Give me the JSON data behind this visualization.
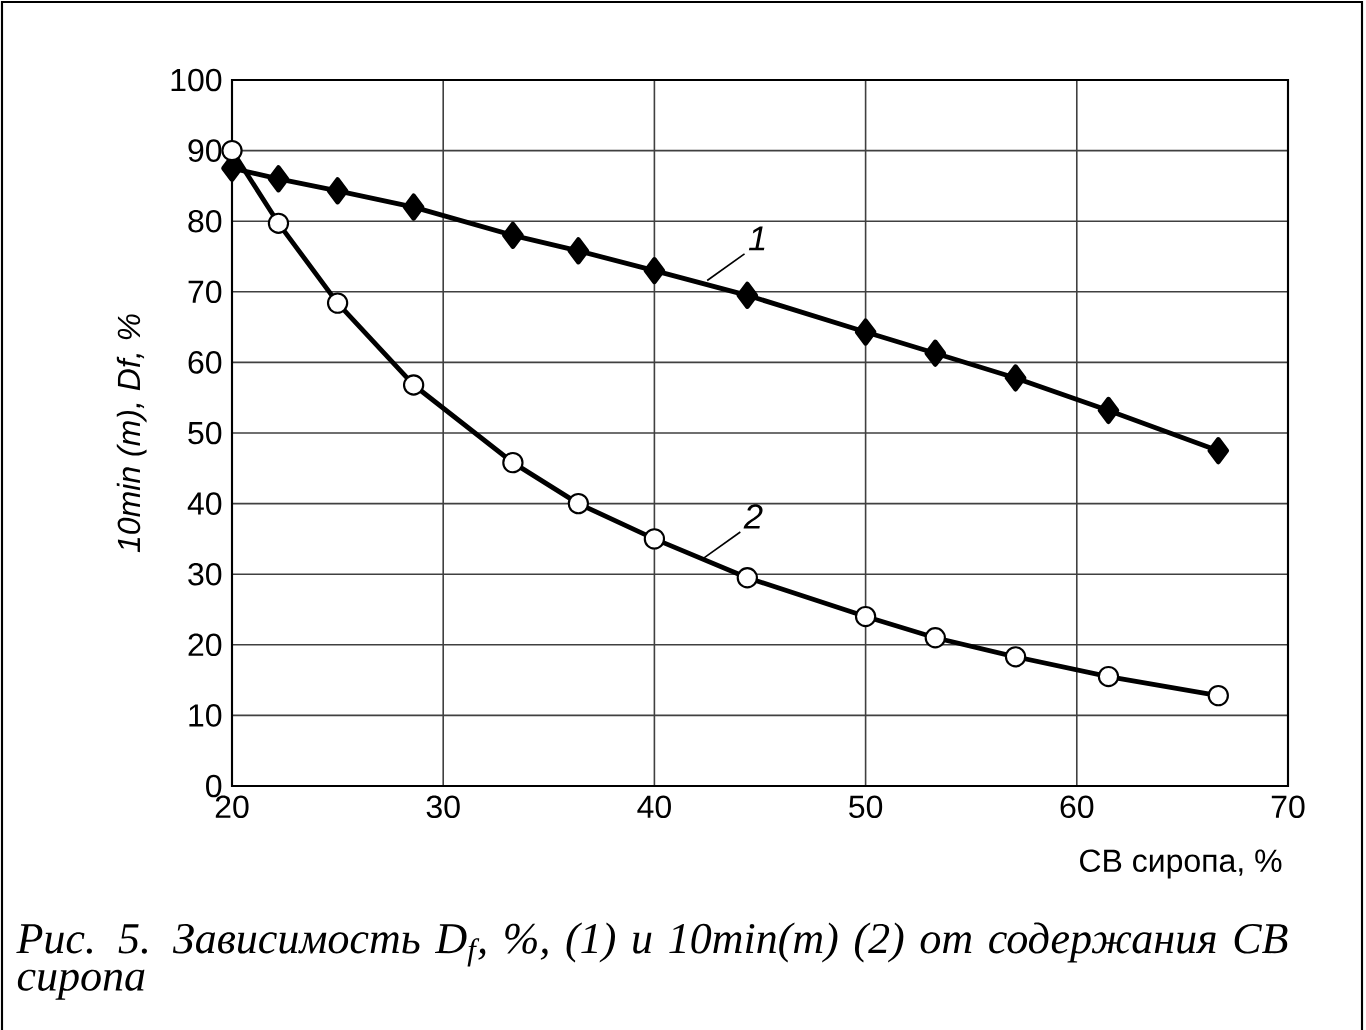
{
  "chart_data": {
    "type": "line",
    "xlabel": "СВ сиропа, %",
    "ylabel": "*10min (m), Df, %*",
    "xlim": [
      20,
      70
    ],
    "xticks": [
      20,
      30,
      40,
      50,
      60,
      70
    ],
    "ylim": [
      0,
      100
    ],
    "yticks": [
      0,
      10,
      20,
      30,
      40,
      50,
      60,
      70,
      80,
      90,
      100
    ],
    "grid": true,
    "series": [
      {
        "color": "#000000",
        "marker": "diamond",
        "x": [
          20,
          22.2,
          25,
          28.6,
          33.3,
          36.4,
          40,
          44.4,
          50,
          53.3,
          57.1,
          61.5,
          66.7
        ],
        "values": [
          87.5,
          86,
          84.3,
          82,
          78,
          75.8,
          73,
          69.5,
          64.3,
          61.3,
          57.8,
          53.2,
          47.5
        ]
      },
      {
        "color": "#000000",
        "marker": "circle",
        "x": [
          20,
          22.2,
          25,
          28.6,
          33.3,
          36.4,
          40,
          44.4,
          50,
          53.3,
          57.1,
          61.5,
          66.7
        ],
        "values": [
          90,
          79.7,
          68.4,
          56.8,
          45.8,
          40,
          35,
          29.5,
          24,
          21,
          18.3,
          15.5,
          12.8
        ]
      }
    ],
    "annotations": [
      {
        "text": "*1*",
        "x": 42.5,
        "y": 71.6
      },
      {
        "text": "*2*",
        "x": 42.3,
        "y": 32.2
      },
      "*Рис. 5. Зависимость D$_{f}$, %, (1) и 10min(m) (2) от содержания СВ сиропа*"
    ]
  }
}
